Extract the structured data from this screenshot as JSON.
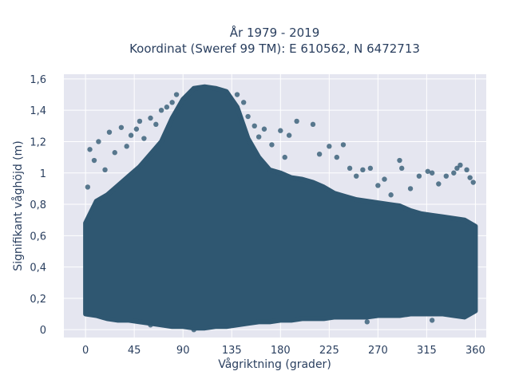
{
  "chart_data": {
    "type": "scatter",
    "title_line1": "År 1979 - 2019",
    "title_line2": "Koordinat (Sweref 99 TM): E 610562, N 6472713",
    "xlabel": "Vågriktning (grader)",
    "ylabel": "Signifikant våghöjd (m)",
    "xlim": [
      -20,
      370
    ],
    "ylim": [
      -0.05,
      1.63
    ],
    "x_ticks": [
      {
        "value": 0,
        "label": "0"
      },
      {
        "value": 45,
        "label": "45"
      },
      {
        "value": 90,
        "label": "90"
      },
      {
        "value": 135,
        "label": "135"
      },
      {
        "value": 180,
        "label": "180"
      },
      {
        "value": 225,
        "label": "225"
      },
      {
        "value": 270,
        "label": "270"
      },
      {
        "value": 315,
        "label": "315"
      },
      {
        "value": 360,
        "label": "360"
      }
    ],
    "y_ticks": [
      {
        "value": 0,
        "label": "0"
      },
      {
        "value": 0.2,
        "label": "0,2"
      },
      {
        "value": 0.4,
        "label": "0,4"
      },
      {
        "value": 0.6,
        "label": "0,6"
      },
      {
        "value": 0.8,
        "label": "0,8"
      },
      {
        "value": 1.0,
        "label": "1"
      },
      {
        "value": 1.2,
        "label": "1,2"
      },
      {
        "value": 1.4,
        "label": "1,4"
      },
      {
        "value": 1.6,
        "label": "1,6"
      }
    ],
    "grid": true,
    "marker_color": "#2f5771",
    "background_color": "#e5e6f0",
    "grid_color": "#ffffff",
    "envelope": {
      "x": [
        0,
        10,
        20,
        30,
        40,
        50,
        60,
        70,
        80,
        90,
        100,
        110,
        120,
        130,
        140,
        150,
        160,
        170,
        180,
        190,
        200,
        210,
        220,
        230,
        240,
        250,
        260,
        270,
        280,
        290,
        300,
        310,
        320,
        330,
        340,
        350,
        360
      ],
      "upper_dense": [
        0.68,
        0.82,
        0.86,
        0.92,
        0.98,
        1.04,
        1.12,
        1.2,
        1.35,
        1.47,
        1.54,
        1.55,
        1.54,
        1.52,
        1.42,
        1.22,
        1.1,
        1.02,
        1.0,
        0.97,
        0.96,
        0.94,
        0.91,
        0.87,
        0.85,
        0.83,
        0.82,
        0.81,
        0.8,
        0.79,
        0.76,
        0.74,
        0.73,
        0.72,
        0.71,
        0.7,
        0.66
      ],
      "lower_dense": [
        0.1,
        0.09,
        0.07,
        0.06,
        0.06,
        0.05,
        0.04,
        0.03,
        0.02,
        0.02,
        0.01,
        0.01,
        0.02,
        0.02,
        0.03,
        0.04,
        0.05,
        0.05,
        0.06,
        0.06,
        0.07,
        0.07,
        0.07,
        0.08,
        0.08,
        0.08,
        0.08,
        0.09,
        0.09,
        0.09,
        0.1,
        0.1,
        0.1,
        0.1,
        0.09,
        0.08,
        0.12
      ]
    },
    "outliers": [
      {
        "x": 2,
        "y": 0.91
      },
      {
        "x": 4,
        "y": 1.15
      },
      {
        "x": 8,
        "y": 1.08
      },
      {
        "x": 12,
        "y": 1.2
      },
      {
        "x": 18,
        "y": 1.02
      },
      {
        "x": 22,
        "y": 1.26
      },
      {
        "x": 27,
        "y": 1.13
      },
      {
        "x": 33,
        "y": 1.29
      },
      {
        "x": 38,
        "y": 1.17
      },
      {
        "x": 42,
        "y": 1.24
      },
      {
        "x": 47,
        "y": 1.28
      },
      {
        "x": 50,
        "y": 1.33
      },
      {
        "x": 54,
        "y": 1.22
      },
      {
        "x": 60,
        "y": 1.35
      },
      {
        "x": 65,
        "y": 1.31
      },
      {
        "x": 70,
        "y": 1.4
      },
      {
        "x": 75,
        "y": 1.42
      },
      {
        "x": 80,
        "y": 1.45
      },
      {
        "x": 84,
        "y": 1.5
      },
      {
        "x": 140,
        "y": 1.5
      },
      {
        "x": 146,
        "y": 1.45
      },
      {
        "x": 150,
        "y": 1.36
      },
      {
        "x": 156,
        "y": 1.3
      },
      {
        "x": 160,
        "y": 1.23
      },
      {
        "x": 165,
        "y": 1.28
      },
      {
        "x": 172,
        "y": 1.18
      },
      {
        "x": 180,
        "y": 1.27
      },
      {
        "x": 184,
        "y": 1.1
      },
      {
        "x": 188,
        "y": 1.24
      },
      {
        "x": 195,
        "y": 1.33
      },
      {
        "x": 210,
        "y": 1.31
      },
      {
        "x": 216,
        "y": 1.12
      },
      {
        "x": 225,
        "y": 1.17
      },
      {
        "x": 232,
        "y": 1.1
      },
      {
        "x": 238,
        "y": 1.18
      },
      {
        "x": 244,
        "y": 1.03
      },
      {
        "x": 250,
        "y": 0.98
      },
      {
        "x": 256,
        "y": 1.02
      },
      {
        "x": 263,
        "y": 1.03
      },
      {
        "x": 270,
        "y": 0.92
      },
      {
        "x": 276,
        "y": 0.96
      },
      {
        "x": 282,
        "y": 0.86
      },
      {
        "x": 290,
        "y": 1.08
      },
      {
        "x": 292,
        "y": 1.03
      },
      {
        "x": 300,
        "y": 0.9
      },
      {
        "x": 308,
        "y": 0.98
      },
      {
        "x": 316,
        "y": 1.01
      },
      {
        "x": 320,
        "y": 1.0
      },
      {
        "x": 326,
        "y": 0.93
      },
      {
        "x": 333,
        "y": 0.98
      },
      {
        "x": 340,
        "y": 1.0
      },
      {
        "x": 343,
        "y": 1.03
      },
      {
        "x": 346,
        "y": 1.05
      },
      {
        "x": 352,
        "y": 1.02
      },
      {
        "x": 355,
        "y": 0.97
      },
      {
        "x": 358,
        "y": 0.94
      },
      {
        "x": 60,
        "y": 0.03
      },
      {
        "x": 100,
        "y": 0.0
      },
      {
        "x": 260,
        "y": 0.05
      },
      {
        "x": 320,
        "y": 0.06
      }
    ]
  }
}
